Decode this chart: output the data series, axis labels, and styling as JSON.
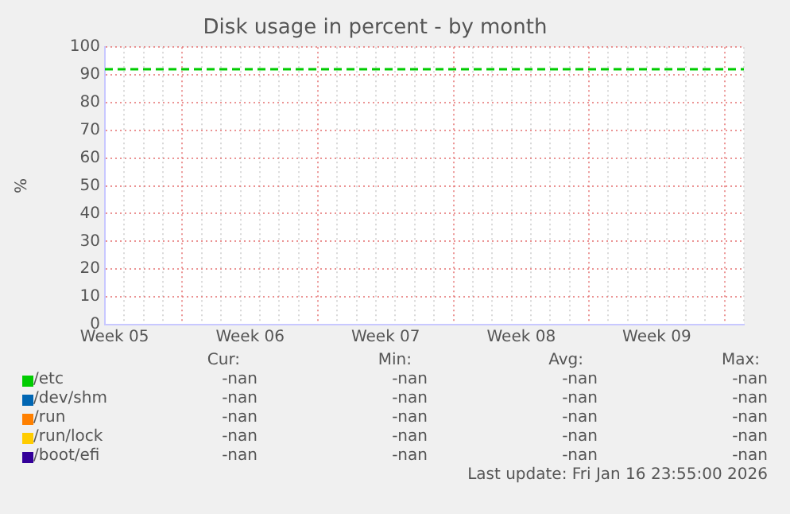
{
  "chart_data": {
    "type": "line",
    "title": "Disk usage in percent - by month",
    "ylabel": "%",
    "categories": [
      null,
      "Week 05",
      null,
      null,
      null,
      null,
      null,
      null,
      null,
      null,
      null,
      null,
      null,
      null,
      null,
      "Week 06",
      null,
      null,
      null,
      null,
      null,
      null,
      null,
      null,
      null,
      null,
      null,
      null,
      null,
      "Week 07",
      null,
      null,
      null,
      null,
      null,
      null,
      null,
      null,
      null,
      null,
      null,
      null,
      null,
      "Week 08",
      null,
      null,
      null,
      null,
      null,
      null,
      null,
      null,
      null,
      null,
      null,
      null,
      null,
      "Week 09",
      null,
      null,
      null,
      null,
      null,
      null,
      null,
      null,
      null
    ],
    "series": [
      {
        "name": "/etc",
        "color": "#00cc00",
        "values": [
          null,
          null,
          null,
          null,
          null,
          null,
          null,
          null,
          null,
          null,
          null,
          null,
          null,
          null,
          null,
          null,
          null,
          null,
          null,
          null,
          null,
          null,
          null,
          null,
          null,
          null,
          null,
          null,
          null,
          null,
          null,
          null,
          null,
          null,
          null,
          null,
          null,
          null,
          null,
          null,
          null,
          null,
          null,
          null,
          null,
          null,
          null,
          null,
          null,
          null,
          null,
          null,
          null,
          null,
          null,
          null,
          null,
          null,
          null,
          null,
          null,
          null,
          null,
          null,
          null,
          null,
          null
        ]
      },
      {
        "name": "/dev/shm",
        "color": "#0066b3",
        "values": [
          null,
          null,
          null,
          null,
          null,
          null,
          null,
          null,
          null,
          null,
          null,
          null,
          null,
          null,
          null,
          null,
          null,
          null,
          null,
          null,
          null,
          null,
          null,
          null,
          null,
          null,
          null,
          null,
          null,
          null,
          null,
          null,
          null,
          null,
          null,
          null,
          null,
          null,
          null,
          null,
          null,
          null,
          null,
          null,
          null,
          null,
          null,
          null,
          null,
          null,
          null,
          null,
          null,
          null,
          null,
          null,
          null,
          null,
          null,
          null,
          null,
          null,
          null,
          null,
          null,
          null,
          null
        ]
      },
      {
        "name": "/run",
        "color": "#ff8000",
        "values": [
          null,
          null,
          null,
          null,
          null,
          null,
          null,
          null,
          null,
          null,
          null,
          null,
          null,
          null,
          null,
          null,
          null,
          null,
          null,
          null,
          null,
          null,
          null,
          null,
          null,
          null,
          null,
          null,
          null,
          null,
          null,
          null,
          null,
          null,
          null,
          null,
          null,
          null,
          null,
          null,
          null,
          null,
          null,
          null,
          null,
          null,
          null,
          null,
          null,
          null,
          null,
          null,
          null,
          null,
          null,
          null,
          null,
          null,
          null,
          null,
          null,
          null,
          null,
          null,
          null,
          null,
          null
        ]
      },
      {
        "name": "/run/lock",
        "color": "#ffcc00",
        "values": [
          null,
          null,
          null,
          null,
          null,
          null,
          null,
          null,
          null,
          null,
          null,
          null,
          null,
          null,
          null,
          null,
          null,
          null,
          null,
          null,
          null,
          null,
          null,
          null,
          null,
          null,
          null,
          null,
          null,
          null,
          null,
          null,
          null,
          null,
          null,
          null,
          null,
          null,
          null,
          null,
          null,
          null,
          null,
          null,
          null,
          null,
          null,
          null,
          null,
          null,
          null,
          null,
          null,
          null,
          null,
          null,
          null,
          null,
          null,
          null,
          null,
          null,
          null,
          null,
          null,
          null,
          null
        ]
      },
      {
        "name": "/boot/efi",
        "color": "#330099",
        "values": [
          null,
          null,
          null,
          null,
          null,
          null,
          null,
          null,
          null,
          null,
          null,
          null,
          null,
          null,
          null,
          null,
          null,
          null,
          null,
          null,
          null,
          null,
          null,
          null,
          null,
          null,
          null,
          null,
          null,
          null,
          null,
          null,
          null,
          null,
          null,
          null,
          null,
          null,
          null,
          null,
          null,
          null,
          null,
          null,
          null,
          null,
          null,
          null,
          null,
          null,
          null,
          null,
          null,
          null,
          null,
          null,
          null,
          null,
          null,
          null,
          null,
          null,
          null,
          null,
          null,
          null,
          null
        ]
      }
    ],
    "ylim": [
      0,
      100
    ],
    "yticks": [
      0,
      10,
      20,
      30,
      40,
      50,
      60,
      70,
      80,
      90,
      100
    ],
    "grid": true,
    "legend": "bottom",
    "ref_lines": [
      {
        "axis": "y",
        "value": 92,
        "color": "#00cc00",
        "line_style": "dashed"
      }
    ],
    "annotations": [
      "Cur:",
      "Min:",
      "Avg:",
      "Max:",
      "-nan",
      "-nan",
      "-nan",
      "-nan",
      "-nan",
      "-nan",
      "-nan",
      "-nan",
      "-nan",
      "-nan",
      "-nan",
      "-nan",
      "-nan",
      "-nan",
      "-nan",
      "-nan",
      "-nan",
      "-nan",
      "-nan",
      "-nan",
      "Last update: Fri Jan 16 23:55:00 2026"
    ]
  }
}
